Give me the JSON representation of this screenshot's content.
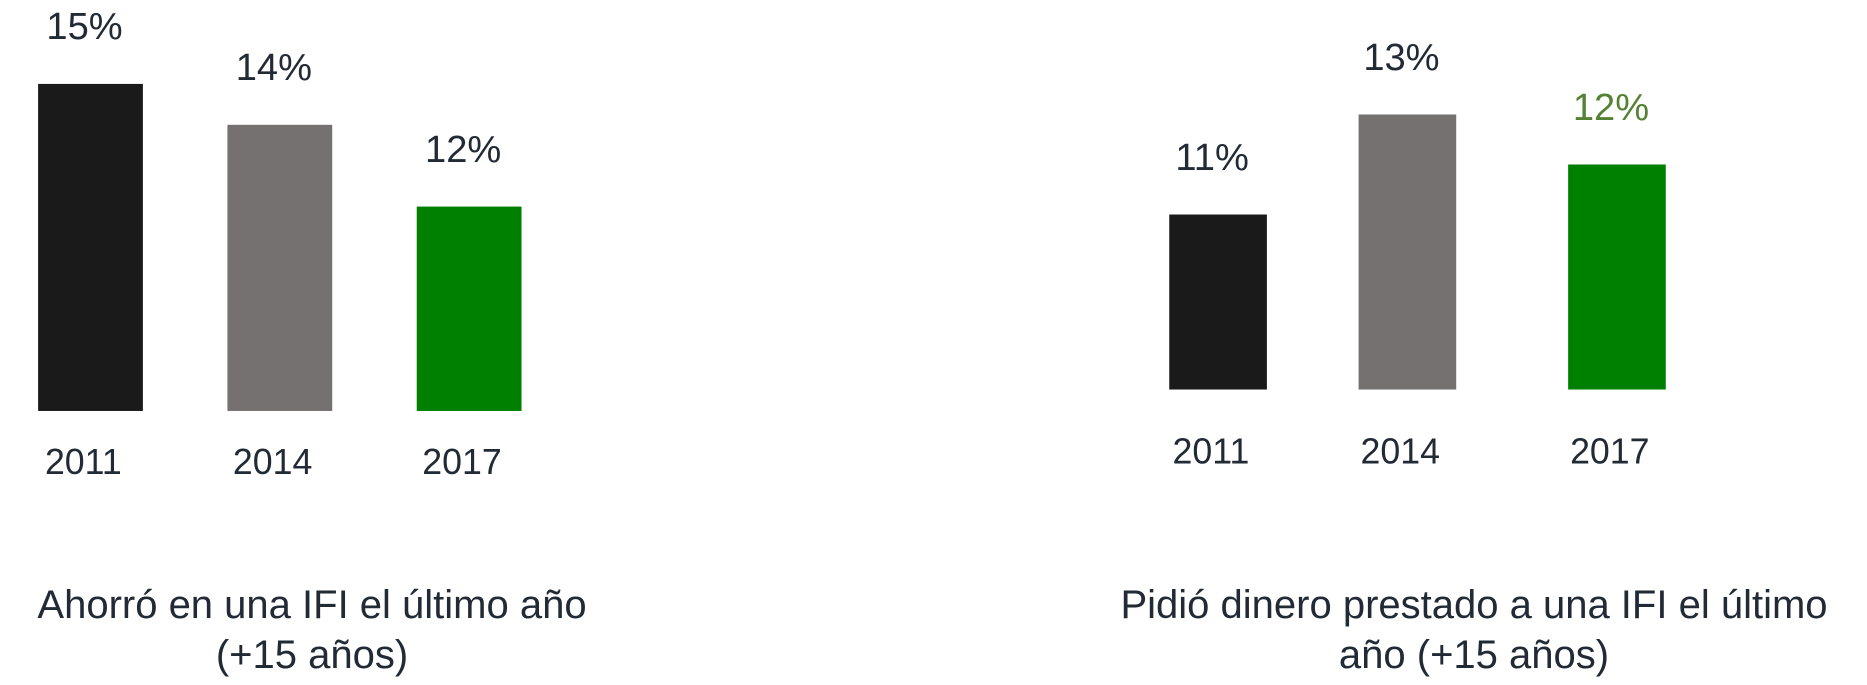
{
  "chart_data": [
    {
      "type": "bar",
      "title": "Ahorró en una IFI el último año (+15 años)",
      "categories": [
        "2011",
        "2014",
        "2017"
      ],
      "values": [
        15,
        14,
        12
      ],
      "value_labels": [
        "15%",
        "14%",
        "12%"
      ],
      "colors": [
        "#1a1a1a",
        "#767171",
        "#008000"
      ],
      "label_colors": [
        "#222a35",
        "#222a35",
        "#222a35"
      ],
      "ylim": [
        7,
        16
      ]
    },
    {
      "type": "bar",
      "title": "Pidió dinero prestado a una IFI el último año  (+15 años)",
      "categories": [
        "2011",
        "2014",
        "2017"
      ],
      "values": [
        11,
        13,
        12
      ],
      "value_labels": [
        "11%",
        "13%",
        "12%"
      ],
      "colors": [
        "#1a1a1a",
        "#767171",
        "#008000"
      ],
      "label_colors": [
        "#222a35",
        "#222a35",
        "#548235"
      ],
      "ylim": [
        7.5,
        14
      ]
    }
  ]
}
